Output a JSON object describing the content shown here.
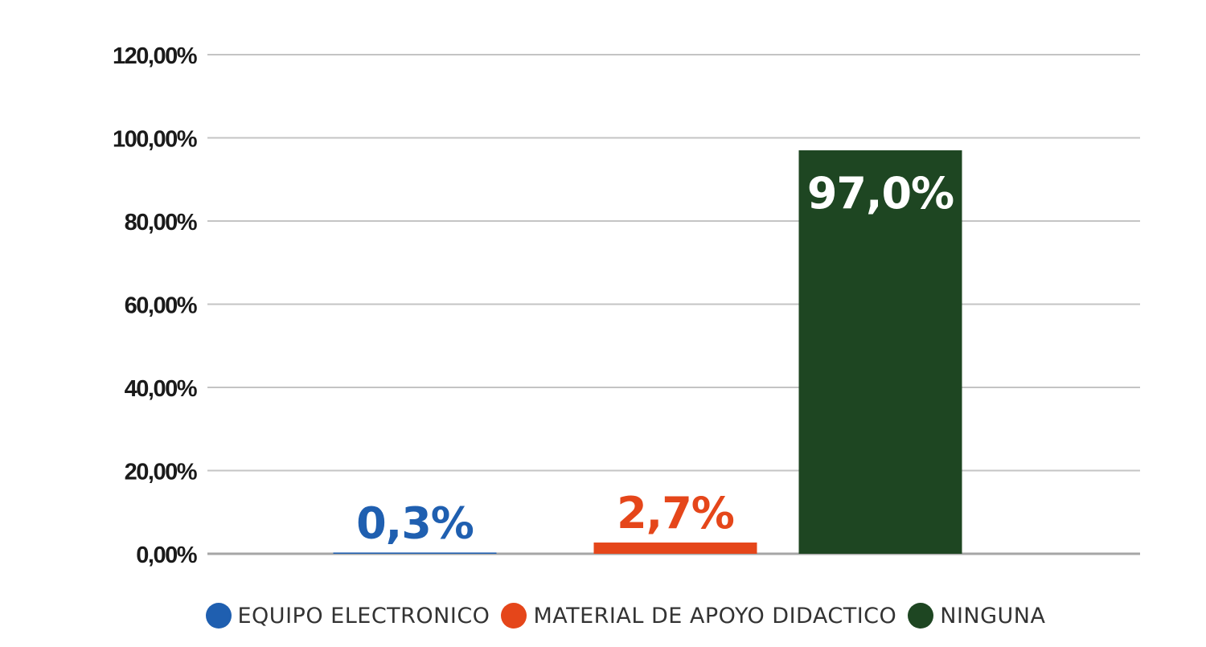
{
  "chart_data": {
    "type": "bar",
    "categories": [
      "EQUIPO ELECTRONICO",
      "MATERIAL DE APOYO DIDACTICO",
      "NINGUNA"
    ],
    "values": [
      0.3,
      2.7,
      97.0
    ],
    "data_labels": [
      "0,3%",
      "2,7%",
      "97,0%"
    ],
    "colors": [
      "#1f5fb0",
      "#e5461a",
      "#1e4622"
    ],
    "ylim": [
      0,
      120
    ],
    "yticks": [
      0,
      20,
      40,
      60,
      80,
      100,
      120
    ],
    "ytick_labels": [
      "0,00%",
      "20,00%",
      "40,00%",
      "60,00%",
      "80,00%",
      "100,00%",
      "120,00%"
    ],
    "grid": true,
    "legend_position": "bottom",
    "title": "",
    "xlabel": "",
    "ylabel": ""
  },
  "legend": {
    "items": [
      {
        "label": "EQUIPO ELECTRONICO",
        "color": "#1f5fb0"
      },
      {
        "label": "MATERIAL DE APOYO DIDACTICO",
        "color": "#e5461a"
      },
      {
        "label": "NINGUNA",
        "color": "#1e4622"
      }
    ]
  }
}
